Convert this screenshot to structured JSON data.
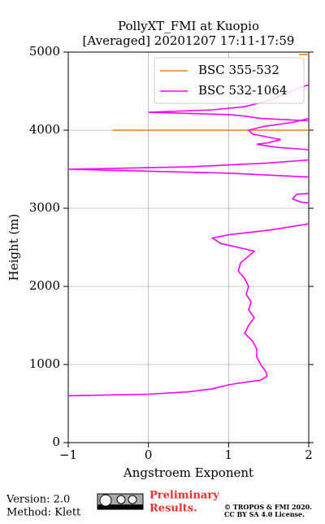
{
  "chart_data": {
    "type": "line",
    "title": "PollyXT_FMI at Kuopio",
    "subtitle": "[Averaged] 20201207 17:11-17:59",
    "x_label": "Angstroem Exponent",
    "y_label": "Height (m)",
    "xlim": [
      -1,
      2
    ],
    "xticks": [
      {
        "value": -1,
        "label": "−1"
      },
      0,
      1,
      2
    ],
    "ylim": [
      0,
      5000
    ],
    "yticks": [
      0,
      1000,
      2000,
      3000,
      4000,
      5000
    ],
    "grid": true,
    "legend": "upper right",
    "series": [
      {
        "name": "BSC 355-532",
        "color": "#ff7f0e",
        "x": [
          -0.45,
          2,
          null,
          1.88,
          2
        ],
        "values": [
          4000,
          4000,
          null,
          4970,
          4970
        ]
      },
      {
        "name": "BSC 532-1064",
        "color": "#ff00ff",
        "x": [
          -1,
          0,
          0.5,
          0.8,
          1.0,
          1.12,
          1.4,
          1.48,
          1.47,
          1.4,
          1.35,
          1.35,
          1.3,
          1.2,
          1.25,
          1.32,
          1.25,
          1.28,
          1.22,
          1.25,
          1.2,
          1.12,
          1.15,
          1.32,
          1.2,
          0.9,
          0.8,
          1.0,
          1.5,
          2.0,
          null,
          2,
          1.85,
          1.8,
          1.9,
          2,
          null,
          2,
          1.0,
          -1,
          0.5,
          1.5,
          2,
          null,
          2,
          1.6,
          1.35,
          1.5,
          1.65,
          1.3,
          1.25,
          1.45,
          1.8,
          2,
          null,
          2,
          1.4,
          1.2,
          1.0,
          0.0,
          0.8,
          1.2,
          1.5,
          1.9,
          2
        ],
        "values": [
          600,
          620,
          650,
          690,
          740,
          760,
          800,
          850,
          900,
          1000,
          1100,
          1200,
          1300,
          1400,
          1500,
          1600,
          1700,
          1800,
          1900,
          2000,
          2100,
          2200,
          2300,
          2450,
          2480,
          2550,
          2620,
          2660,
          2720,
          2800,
          null,
          3190,
          3180,
          3120,
          3080,
          3070,
          null,
          3400,
          3450,
          3500,
          3530,
          3580,
          3620,
          null,
          3750,
          3780,
          3820,
          3840,
          3880,
          3950,
          4000,
          4050,
          4100,
          4150,
          null,
          4120,
          4150,
          4180,
          4200,
          4230,
          4260,
          4300,
          4380,
          4550,
          4580
        ]
      }
    ],
    "footer": {
      "version": "Version: 2.0",
      "method": "Method: Klett",
      "status": "Preliminary Results.",
      "copyright": "© TROPOS & FMI 2020.",
      "license": "CC BY SA 4.0 License."
    }
  }
}
